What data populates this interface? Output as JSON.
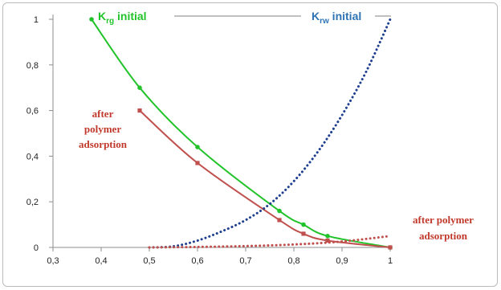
{
  "chart_data": {
    "type": "line",
    "xlim": [
      0.3,
      1.0
    ],
    "ylim": [
      0,
      1.0
    ],
    "x_ticks": [
      "0,3",
      "0,4",
      "0,5",
      "0,6",
      "0,7",
      "0,8",
      "0,9",
      "1"
    ],
    "y_ticks": [
      "0",
      "0,2",
      "0,4",
      "0,6",
      "0,8",
      "1"
    ],
    "grid": false,
    "series": [
      {
        "key": "krg_initial",
        "color": "#22c32a",
        "style": "solid",
        "x": [
          0.38,
          0.48,
          0.6,
          0.77,
          0.82,
          0.87,
          1.0
        ],
        "y": [
          1.0,
          0.7,
          0.44,
          0.16,
          0.1,
          0.05,
          0.0
        ]
      },
      {
        "key": "krg_after_polymer",
        "color": "#c0504d",
        "style": "solid",
        "x": [
          0.48,
          0.6,
          0.77,
          0.82,
          0.87,
          1.0
        ],
        "y": [
          0.6,
          0.37,
          0.12,
          0.06,
          0.03,
          0.0
        ]
      },
      {
        "key": "krw_initial",
        "color": "#1f3f8f",
        "style": "dotted",
        "x": [
          0.5,
          0.55,
          0.6,
          0.65,
          0.7,
          0.75,
          0.8,
          0.85,
          0.9,
          0.95,
          1.0
        ],
        "y": [
          0.0,
          0.005,
          0.03,
          0.07,
          0.12,
          0.19,
          0.29,
          0.42,
          0.58,
          0.77,
          1.0
        ]
      },
      {
        "key": "krw_after_polymer",
        "color": "#c0504d",
        "style": "dotted",
        "x": [
          0.5,
          0.6,
          0.7,
          0.8,
          0.9,
          1.0
        ],
        "y": [
          0.0,
          0.002,
          0.006,
          0.013,
          0.026,
          0.05
        ]
      }
    ],
    "annotations": {
      "krg_initial": {
        "main": "K",
        "sub": "rg",
        "suffix": " initial"
      },
      "krw_initial": {
        "main": "K",
        "sub": "rw",
        "suffix": " initial"
      },
      "krg_after_line1": "after",
      "krg_after_line2": "polymer",
      "krg_after_line3": "adsorption",
      "krw_after_line1": "after polymer",
      "krw_after_line2": "adsorption"
    }
  }
}
